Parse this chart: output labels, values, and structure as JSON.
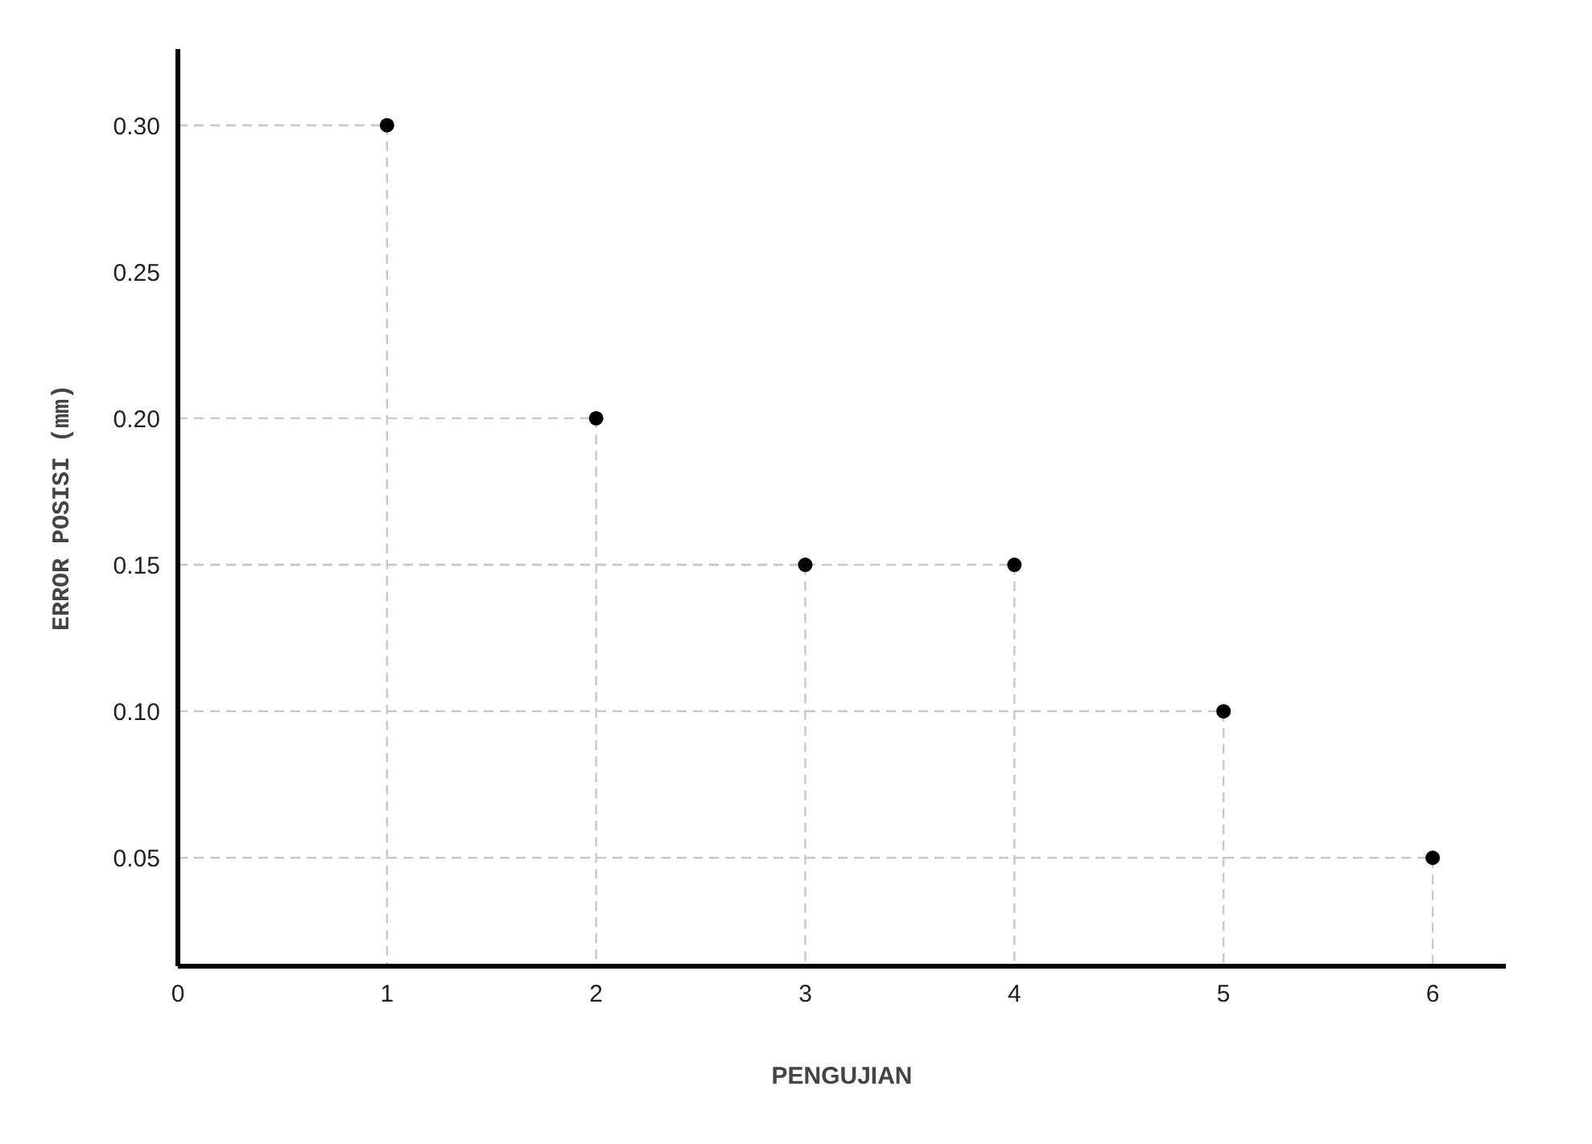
{
  "chart_data": {
    "type": "scatter",
    "xlabel": "PENGUJIAN",
    "ylabel": "ERROR POSISI (mm)",
    "x": [
      1,
      2,
      3,
      4,
      5,
      6
    ],
    "series": [
      {
        "type": "line",
        "color": "#c8c8c8",
        "line_style": "dashed",
        "marker": "none",
        "x": [
          0,
          1,
          1
        ],
        "values": [
          0.3,
          0.3,
          0.013
        ]
      },
      {
        "type": "line",
        "color": "#c8c8c8",
        "line_style": "dashed",
        "marker": "none",
        "x": [
          0,
          2,
          2
        ],
        "values": [
          0.2,
          0.2,
          0.013
        ]
      },
      {
        "type": "line",
        "color": "#c8c8c8",
        "line_style": "dashed",
        "marker": "none",
        "x": [
          0,
          3,
          3
        ],
        "values": [
          0.15,
          0.15,
          0.013
        ]
      },
      {
        "type": "line",
        "color": "#c8c8c8",
        "line_style": "dashed",
        "marker": "none",
        "x": [
          0,
          4,
          4
        ],
        "values": [
          0.15,
          0.15,
          0.013
        ]
      },
      {
        "type": "line",
        "color": "#c8c8c8",
        "line_style": "dashed",
        "marker": "none",
        "x": [
          0,
          5,
          5
        ],
        "values": [
          0.1,
          0.1,
          0.013
        ]
      },
      {
        "type": "line",
        "color": "#c8c8c8",
        "line_style": "dashed",
        "marker": "none",
        "x": [
          0,
          6,
          6
        ],
        "values": [
          0.05,
          0.05,
          0.013
        ]
      },
      {
        "color": "#000000",
        "values": [
          0.3,
          0.2,
          0.15,
          0.15,
          0.1,
          0.05
        ]
      }
    ],
    "xlim": [
      0,
      6.35
    ],
    "xticks": [
      0,
      1,
      2,
      3,
      4,
      5,
      6
    ],
    "ylim": [
      0.013,
      0.326
    ],
    "yticks": [
      0.05,
      {
        "value": 0.1,
        "label": "0.10"
      },
      0.15,
      {
        "value": 0.2,
        "label": "0.20"
      },
      0.25,
      {
        "value": 0.3,
        "label": "0.30"
      }
    ],
    "marker": "circle"
  }
}
